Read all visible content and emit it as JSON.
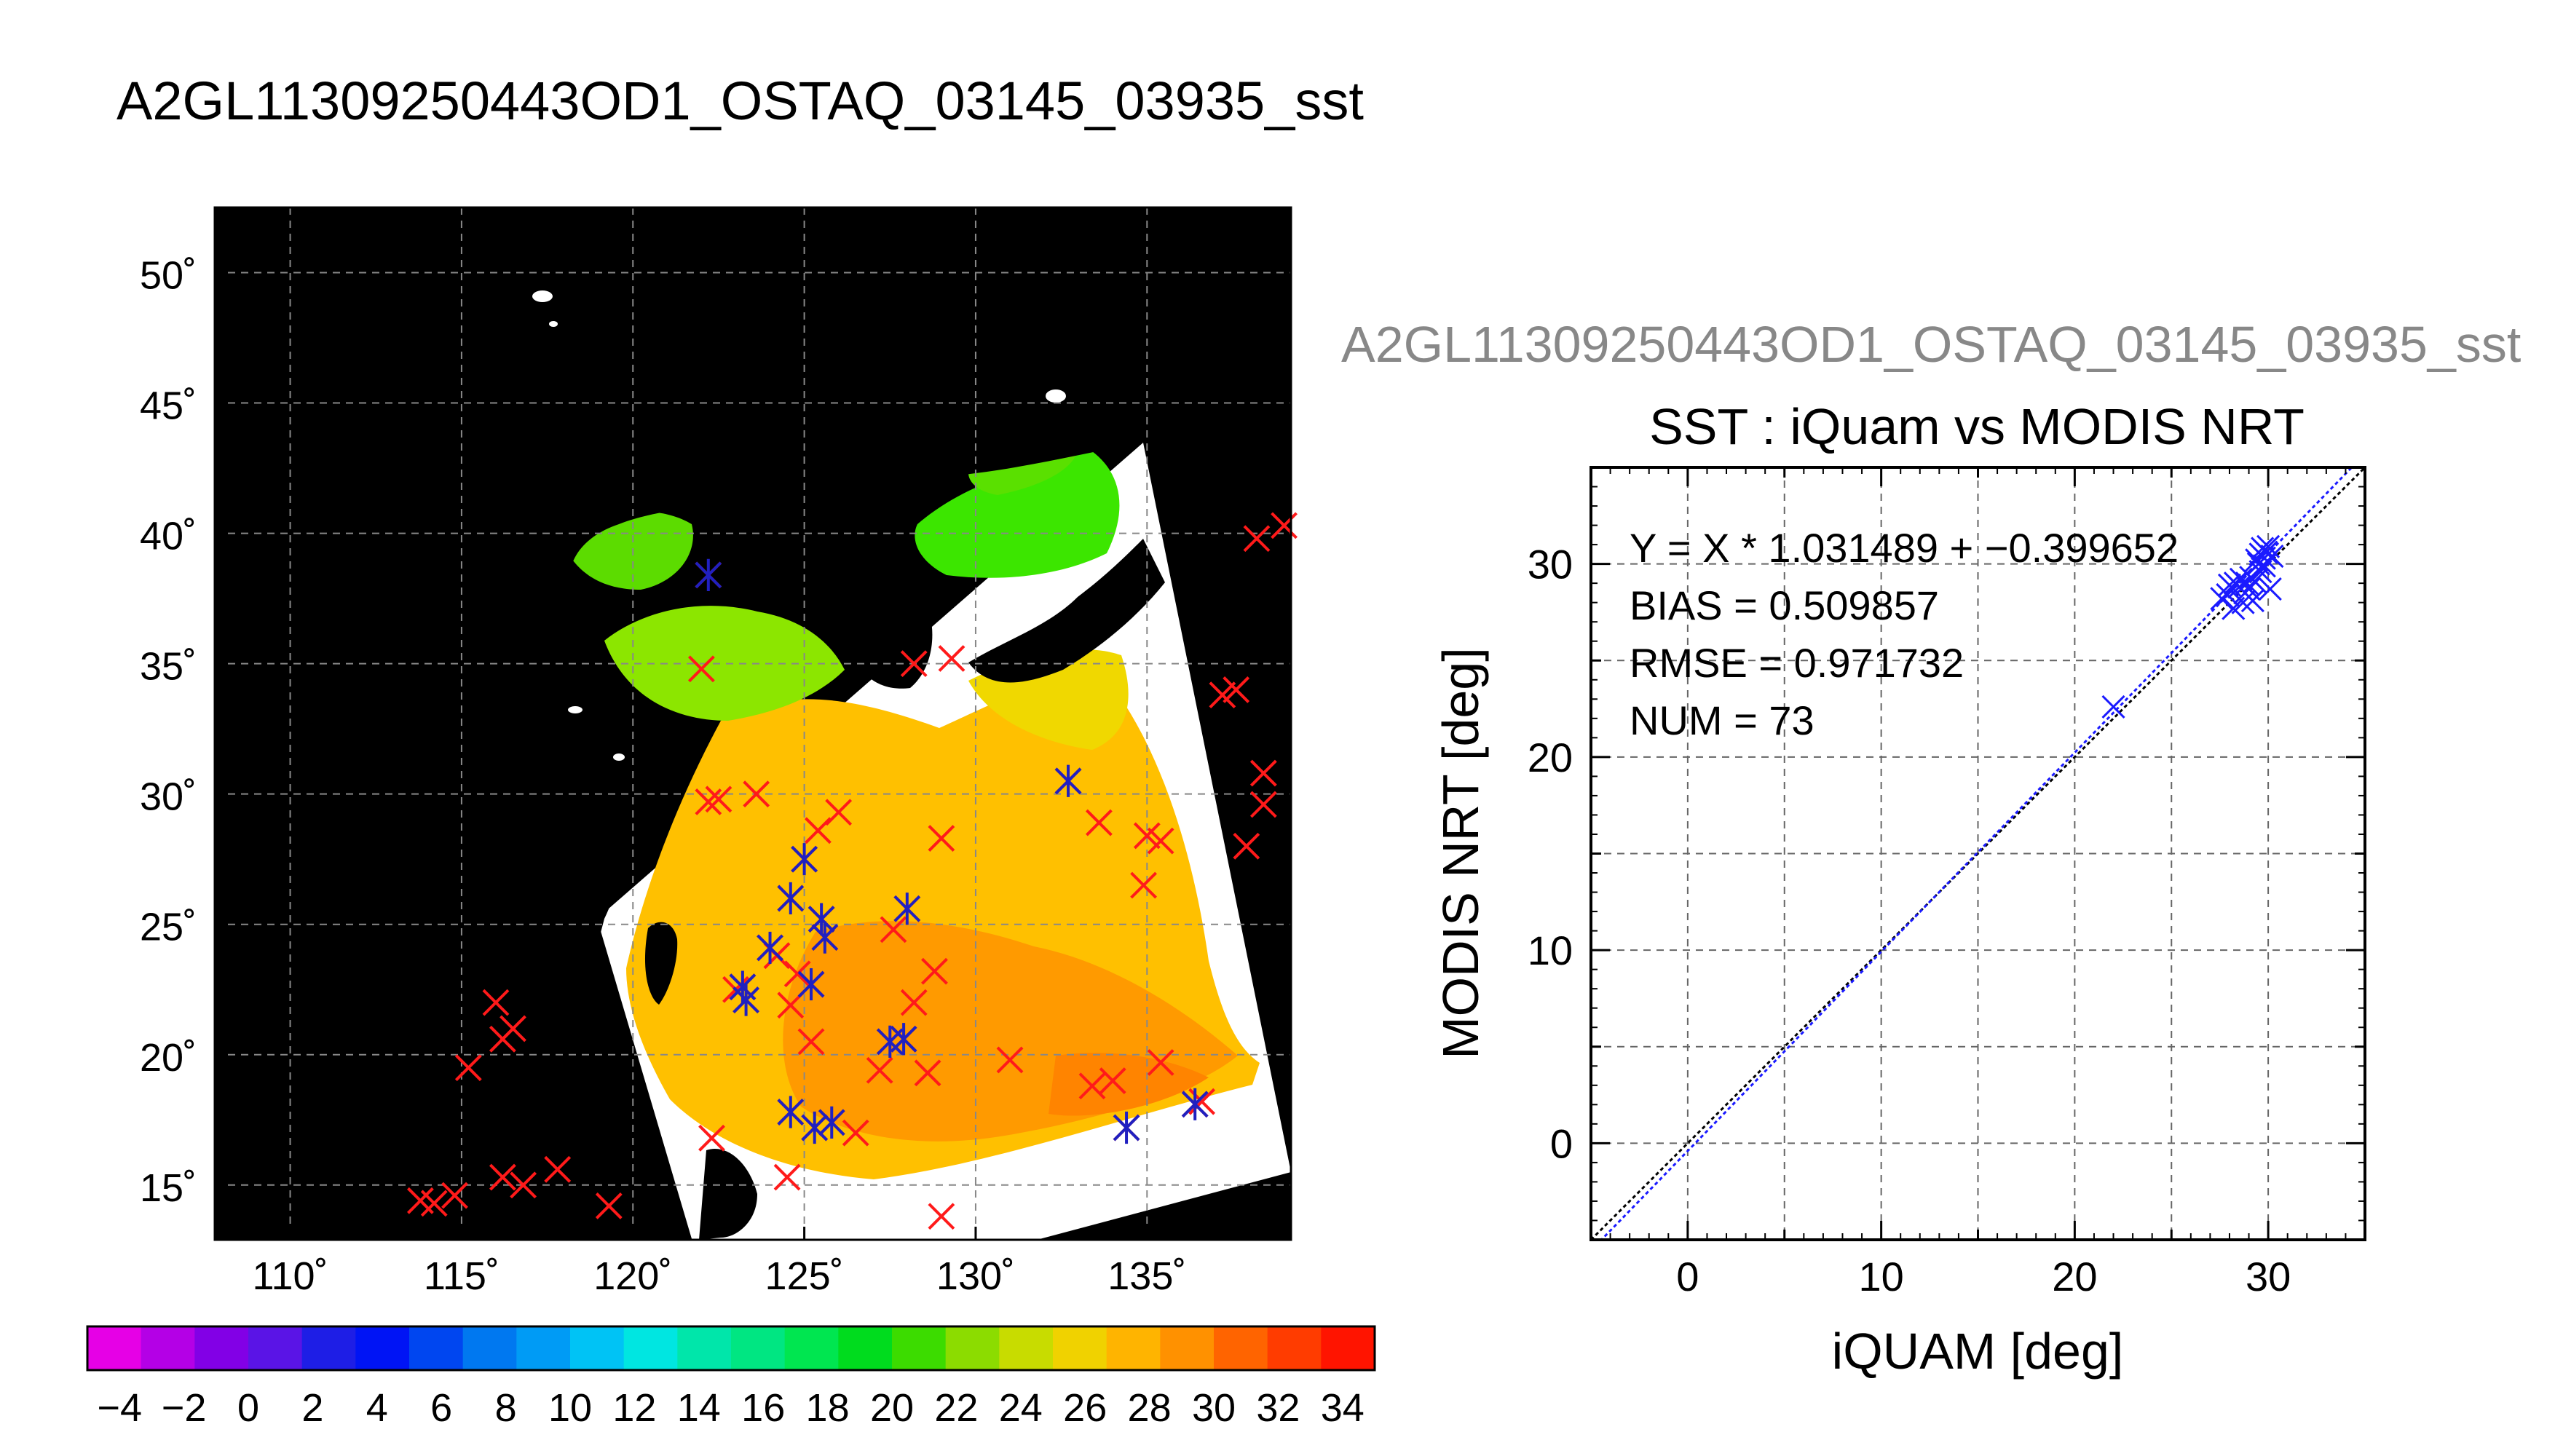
{
  "page_title": "A2GL11309250443OD1_OSTAQ_03145_03935_sst",
  "chart_data": [
    {
      "type": "map",
      "lat_ticks": [
        50,
        45,
        40,
        35,
        30,
        25,
        20,
        15
      ],
      "lon_ticks": [
        110,
        115,
        120,
        125,
        130,
        135
      ],
      "lon_range": [
        107.8,
        139.2
      ],
      "lat_range": [
        12.9,
        52.5
      ],
      "lat_tick_labels": [
        "50˚",
        "45˚",
        "40˚",
        "35˚",
        "30˚",
        "25˚",
        "20˚",
        "15˚"
      ],
      "lon_tick_labels": [
        "110˚",
        "115˚",
        "120˚",
        "125˚",
        "130˚",
        "135˚"
      ],
      "grid": true,
      "background_color": "#000000",
      "colorbar": {
        "range": [
          -5,
          35
        ],
        "tick_values": [
          -4,
          -2,
          0,
          2,
          4,
          6,
          8,
          10,
          12,
          14,
          16,
          18,
          20,
          22,
          24,
          26,
          28,
          30,
          32,
          34
        ],
        "tick_labels": [
          "−4",
          "−2",
          "0",
          "2",
          "4",
          "6",
          "8",
          "10",
          "12",
          "14",
          "16",
          "18",
          "20",
          "22",
          "24",
          "26",
          "28",
          "30",
          "32",
          "34"
        ],
        "colors": [
          "#e600e6",
          "#b400e6",
          "#8200e6",
          "#5a14e6",
          "#1e1ee6",
          "#0014f5",
          "#0046f0",
          "#0078f0",
          "#009bf5",
          "#00c3f5",
          "#00e6e1",
          "#00e6aa",
          "#00e682",
          "#00e650",
          "#00dc1e",
          "#3cdc00",
          "#8cdc00",
          "#c8dc00",
          "#f0d200",
          "#ffb400",
          "#ff9100",
          "#ff6400",
          "#ff3c00",
          "#ff1400"
        ]
      },
      "iquam_points_red_x": [
        [
          113.8,
          14.4
        ],
        [
          114.2,
          14.3
        ],
        [
          114.8,
          14.6
        ],
        [
          115.2,
          19.5
        ],
        [
          116.0,
          22.0
        ],
        [
          116.2,
          20.6
        ],
        [
          116.5,
          21.0
        ],
        [
          116.2,
          15.3
        ],
        [
          116.8,
          15.0
        ],
        [
          117.8,
          15.6
        ],
        [
          119.3,
          14.2
        ],
        [
          122.0,
          34.8
        ],
        [
          122.2,
          29.7
        ],
        [
          122.5,
          29.8
        ],
        [
          123.6,
          30.0
        ],
        [
          122.3,
          16.8
        ],
        [
          123.0,
          22.5
        ],
        [
          124.2,
          23.8
        ],
        [
          124.6,
          21.9
        ],
        [
          124.8,
          23.1
        ],
        [
          125.2,
          20.5
        ],
        [
          124.5,
          15.3
        ],
        [
          126.0,
          29.3
        ],
        [
          125.4,
          28.6
        ],
        [
          127.6,
          24.8
        ],
        [
          127.2,
          19.4
        ],
        [
          128.2,
          22.0
        ],
        [
          128.8,
          23.2
        ],
        [
          129.0,
          28.3
        ],
        [
          128.2,
          35.0
        ],
        [
          129.3,
          35.2
        ],
        [
          129.0,
          13.8
        ],
        [
          128.6,
          19.3
        ],
        [
          126.5,
          17.0
        ],
        [
          131.0,
          19.8
        ],
        [
          133.6,
          28.9
        ],
        [
          133.4,
          18.8
        ],
        [
          134.0,
          19.0
        ],
        [
          135.0,
          28.4
        ],
        [
          135.4,
          28.2
        ],
        [
          134.9,
          26.5
        ],
        [
          135.4,
          19.7
        ],
        [
          137.2,
          33.8
        ],
        [
          137.6,
          34.0
        ],
        [
          137.9,
          28.0
        ],
        [
          138.4,
          30.8
        ],
        [
          138.4,
          29.6
        ],
        [
          138.2,
          39.8
        ],
        [
          139.0,
          40.3
        ],
        [
          136.6,
          18.2
        ]
      ],
      "iquam_points_blue_star": [
        [
          122.2,
          38.4
        ],
        [
          123.3,
          22.1
        ],
        [
          123.2,
          22.6
        ],
        [
          124.0,
          24.1
        ],
        [
          124.6,
          26.0
        ],
        [
          125.5,
          25.2
        ],
        [
          125.0,
          27.5
        ],
        [
          125.6,
          24.5
        ],
        [
          125.2,
          22.7
        ],
        [
          124.6,
          17.8
        ],
        [
          125.3,
          17.2
        ],
        [
          125.8,
          17.4
        ],
        [
          127.5,
          20.5
        ],
        [
          127.9,
          20.6
        ],
        [
          128.0,
          25.6
        ],
        [
          132.7,
          30.5
        ],
        [
          134.4,
          17.2
        ],
        [
          136.4,
          18.1
        ]
      ]
    },
    {
      "type": "scatter",
      "suptitle": "A2GL11309250443OD1_OSTAQ_03145_03935_sst",
      "title": "SST : iQuam vs MODIS NRT",
      "xlabel": "iQUAM [deg]",
      "ylabel": "MODIS NRT [deg]",
      "xlim": [
        -5,
        35
      ],
      "ylim": [
        -5,
        35
      ],
      "xticks": [
        0,
        10,
        20,
        30
      ],
      "yticks": [
        0,
        10,
        20,
        30
      ],
      "grid": true,
      "annotations": [
        "Y = X * 1.031489 + −0.399652",
        "BIAS = 0.509857",
        "RMSE = 0.971732",
        "NUM = 73"
      ],
      "fit": {
        "slope": 1.031489,
        "intercept": -0.399652
      },
      "points": [
        [
          22.0,
          22.6
        ],
        [
          27.6,
          28.2
        ],
        [
          27.9,
          28.4
        ],
        [
          28.2,
          27.7
        ],
        [
          28.0,
          28.9
        ],
        [
          28.3,
          29.0
        ],
        [
          28.5,
          28.8
        ],
        [
          28.6,
          29.2
        ],
        [
          28.8,
          28.5
        ],
        [
          28.9,
          29.0
        ],
        [
          29.0,
          28.7
        ],
        [
          29.1,
          29.3
        ],
        [
          29.3,
          29.1
        ],
        [
          29.5,
          30.0
        ],
        [
          29.6,
          30.5
        ],
        [
          29.7,
          30.8
        ],
        [
          29.8,
          30.3
        ],
        [
          29.9,
          30.6
        ],
        [
          30.0,
          30.9
        ],
        [
          29.6,
          29.6
        ],
        [
          29.2,
          28.1
        ],
        [
          30.1,
          28.7
        ],
        [
          29.4,
          30.2
        ],
        [
          30.2,
          30.4
        ],
        [
          28.7,
          28.0
        ],
        [
          29.8,
          29.9
        ]
      ]
    }
  ]
}
